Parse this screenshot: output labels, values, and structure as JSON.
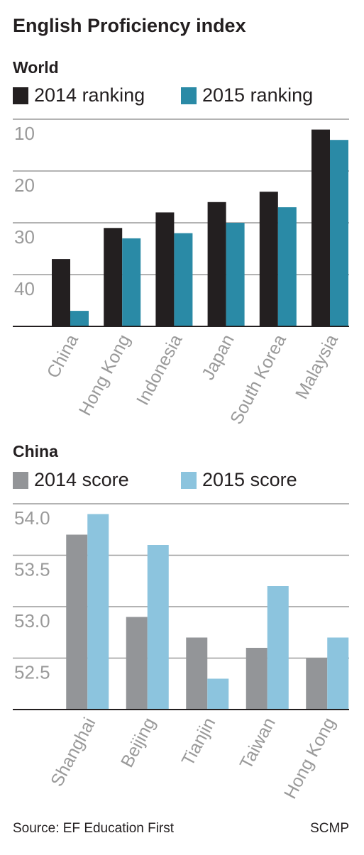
{
  "title": "English Proficiency index",
  "source": "Source: EF Education First",
  "credit": "SCMP",
  "chart_data": [
    {
      "type": "bar",
      "title": "World",
      "categories": [
        "China",
        "Hong Kong",
        "Indonesia",
        "Japan",
        "South Korea",
        "Malaysia"
      ],
      "series": [
        {
          "name": "2014 ranking",
          "color": "#231f20",
          "values": [
            37,
            31,
            28,
            26,
            24,
            12
          ]
        },
        {
          "name": "2015 ranking",
          "color": "#2a8aa6",
          "values": [
            47,
            33,
            32,
            30,
            27,
            14
          ]
        }
      ],
      "ylim": [
        50,
        10
      ],
      "yticks": [
        10,
        20,
        30,
        40
      ],
      "grid": true
    },
    {
      "type": "bar",
      "title": "China",
      "categories": [
        "Shanghai",
        "Beijing",
        "Tianjin",
        "Taiwan",
        "Hong Kong"
      ],
      "series": [
        {
          "name": "2014 score",
          "color": "#939598",
          "values": [
            53.7,
            52.9,
            52.7,
            52.6,
            52.5
          ]
        },
        {
          "name": "2015 score",
          "color": "#8cc4de",
          "values": [
            53.9,
            53.6,
            52.3,
            53.2,
            52.7
          ]
        }
      ],
      "ylim": [
        52,
        54
      ],
      "yticks": [
        {
          "value": 54,
          "label": "54.0"
        },
        53.5,
        52.5,
        {
          "value": 53,
          "label": "53.0"
        }
      ],
      "grid": true
    }
  ]
}
